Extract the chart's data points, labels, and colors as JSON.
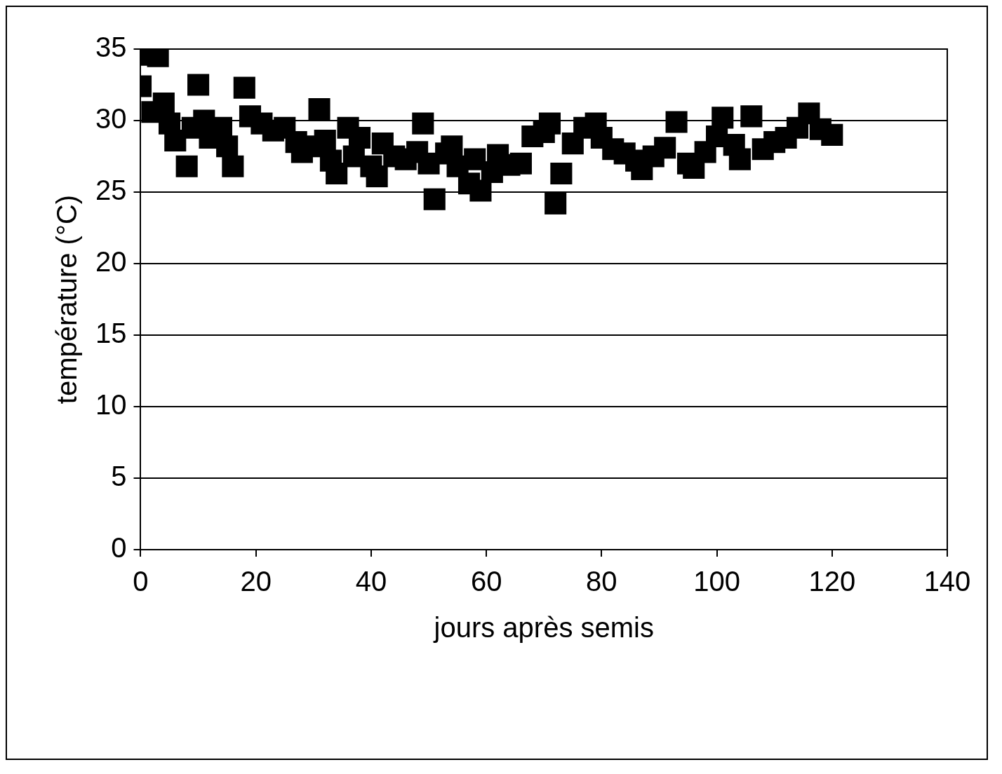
{
  "chart_data": {
    "type": "scatter",
    "xlabel": "jours après semis",
    "ylabel": "température (°C)",
    "marker": "square",
    "grid": "y",
    "xlim": [
      0,
      140
    ],
    "xticks": [
      0,
      20,
      40,
      60,
      80,
      100,
      120,
      140
    ],
    "ylim": [
      0,
      35
    ],
    "yticks": [
      0,
      5,
      10,
      15,
      20,
      25,
      30,
      35
    ],
    "series": [
      {
        "color": "#000000",
        "x": [
          0,
          1,
          3,
          2,
          4,
          5,
          6,
          8,
          9,
          10,
          11,
          12,
          14,
          15,
          16,
          18,
          19,
          21,
          23,
          25,
          27,
          28,
          30,
          31,
          32,
          33,
          34,
          36,
          37,
          38,
          40,
          41,
          42,
          44,
          46,
          48,
          49,
          50,
          51,
          53,
          54,
          55,
          57,
          58,
          59,
          61,
          62,
          64,
          66,
          68,
          70,
          71,
          72,
          73,
          75,
          77,
          79,
          80,
          82,
          84,
          86,
          87,
          89,
          91,
          93,
          95,
          96,
          98,
          100,
          101,
          103,
          104,
          106,
          108,
          110,
          112,
          114,
          116,
          118,
          120
        ],
        "values": [
          32.4,
          34.6,
          34.5,
          30.6,
          31.2,
          29.8,
          28.6,
          26.8,
          29.5,
          32.5,
          30.0,
          28.8,
          29.5,
          28.2,
          26.8,
          32.3,
          30.3,
          29.8,
          29.3,
          29.5,
          28.5,
          27.8,
          28.2,
          30.8,
          28.6,
          27.2,
          26.3,
          29.5,
          27.5,
          28.8,
          26.8,
          26.1,
          28.4,
          27.5,
          27.3,
          27.8,
          29.8,
          27.0,
          24.5,
          27.7,
          28.2,
          26.8,
          25.6,
          27.3,
          25.1,
          26.4,
          27.6,
          26.9,
          27.0,
          28.9,
          29.2,
          29.8,
          24.2,
          26.3,
          28.4,
          29.5,
          29.8,
          28.8,
          28.0,
          27.7,
          27.2,
          26.6,
          27.5,
          28.1,
          29.9,
          27.0,
          26.7,
          27.8,
          28.9,
          30.2,
          28.3,
          27.3,
          30.3,
          28.0,
          28.5,
          28.8,
          29.5,
          30.5,
          29.4,
          29.0
        ]
      }
    ]
  }
}
